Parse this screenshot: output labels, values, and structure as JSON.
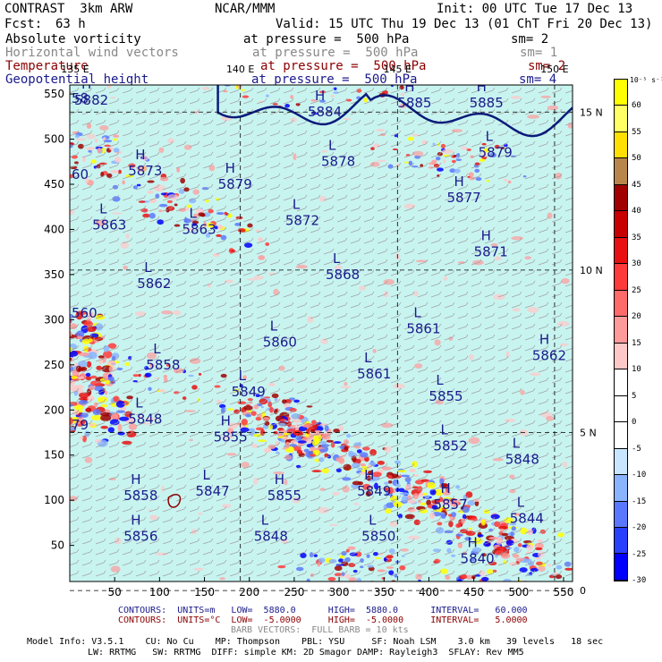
{
  "header": {
    "model": "CONTRAST  3km ARW",
    "org": "NCAR/MMM",
    "init": "Init: 00 UTC Tue 17 Dec 13",
    "fcst_label": "Fcst:",
    "fcst_value": "63 h",
    "valid": "Valid: 15 UTC Thu 19 Dec 13 (01 ChT Fri 20 Dec 13)",
    "fields": [
      {
        "name": "Absolute vorticity",
        "pressure": "at pressure =  500 hPa",
        "sm": "sm= 2"
      },
      {
        "name": "Horizontal wind vectors",
        "pressure": "at pressure =  500 hPa",
        "sm": "sm= 1"
      },
      {
        "name": "Temperature",
        "pressure": "at pressure =  500 hPa",
        "sm": "sm= 2"
      },
      {
        "name": "Geopotential height",
        "pressure": "at pressure =  500 hPa",
        "sm": "sm= 4"
      }
    ]
  },
  "footer": {
    "contours_blue": "CONTOURS:  UNITS=m   LOW=  5880.0      HIGH=  5880.0      INTERVAL=   60.000",
    "contours_red": "CONTOURS:  UNITS=°C  LOW=  -5.0000     HIGH=  -5.0000     INTERVAL=   5.0000",
    "barb": "BARB VECTORS:  FULL BARB = 10 kts",
    "model_info_1": "Model Info: V3.5.1    CU: No Cu    MP: Thompson    PBL: YSU     SF: Noah LSM    3.0 km   39 levels   18 sec",
    "model_info_2": "LW: RRTMG   SW: RRTMG  DIFF: simple KM: 2D Smagor DAMP: Rayleigh3  SFLAY: Rev MM5"
  },
  "colorbar": {
    "unit": "10⁻⁵ s⁻¹",
    "labels": [
      "60",
      "55",
      "50",
      "45",
      "40",
      "35",
      "30",
      "25",
      "20",
      "15",
      "10",
      "5",
      "0",
      "-5",
      "-10",
      "-15",
      "-20",
      "-25",
      "-30"
    ],
    "colors": [
      "#ffff00",
      "#ffff66",
      "#ffe000",
      "#b8864b",
      "#a00000",
      "#c80000",
      "#e81010",
      "#ff3a3a",
      "#ff6a6a",
      "#ff9a9a",
      "#ffc8c8",
      "#ffffff",
      "#ffffff",
      "#ffffff",
      "#c8e6ff",
      "#8ab4ff",
      "#5a78ff",
      "#2a40ff",
      "#0000ff"
    ]
  },
  "chart_data": {
    "type": "heatmap",
    "title": "Absolute vorticity / wind / temperature / geopotential height at 500 hPa",
    "x_ticks": [
      "50",
      "100",
      "150",
      "200",
      "250",
      "300",
      "350",
      "400",
      "450",
      "500",
      "550"
    ],
    "y_ticks": [
      "50",
      "100",
      "150",
      "200",
      "250",
      "300",
      "350",
      "400",
      "450",
      "500",
      "550"
    ],
    "xlim": [
      0,
      560
    ],
    "ylim": [
      10,
      560
    ],
    "lon_labels": [
      "135 E",
      "140 E",
      "145 E",
      "150 E"
    ],
    "lon_values": [
      135,
      140,
      145,
      150
    ],
    "lat_labels": [
      "15 N",
      "10 N",
      "5 N",
      "0"
    ],
    "lat_values": [
      15,
      10,
      5,
      0
    ],
    "gridline_x": [
      0,
      190,
      365,
      540
    ],
    "gridline_y": [
      530,
      355,
      175,
      0
    ],
    "height_labels": [
      {
        "kind": "H",
        "value": "5882",
        "x": 5,
        "y": 548
      },
      {
        "kind": "H",
        "value": "5884",
        "x": 265,
        "y": 535
      },
      {
        "kind": "H",
        "value": "5885",
        "x": 365,
        "y": 545
      },
      {
        "kind": "H",
        "value": "5885",
        "x": 445,
        "y": 545
      },
      {
        "kind": "L",
        "value": "5879",
        "x": 455,
        "y": 490
      },
      {
        "kind": "L",
        "value": "5878",
        "x": 280,
        "y": 480
      },
      {
        "kind": "H",
        "value": "5873",
        "x": 65,
        "y": 470
      },
      {
        "kind": "H",
        "value": "5879",
        "x": 165,
        "y": 455
      },
      {
        "kind": "H",
        "value": "5877",
        "x": 420,
        "y": 440
      },
      {
        "kind": "L",
        "value": "5863",
        "x": 25,
        "y": 410
      },
      {
        "kind": "L",
        "value": "5863",
        "x": 125,
        "y": 405
      },
      {
        "kind": "L",
        "value": "5872",
        "x": 240,
        "y": 415
      },
      {
        "kind": "H",
        "value": "5871",
        "x": 450,
        "y": 380
      },
      {
        "kind": "L",
        "value": "5862",
        "x": 75,
        "y": 345
      },
      {
        "kind": "L",
        "value": "5868",
        "x": 285,
        "y": 355
      },
      {
        "kind": "L",
        "value": "5861",
        "x": 375,
        "y": 295
      },
      {
        "kind": "L",
        "value": "5860",
        "x": 215,
        "y": 280
      },
      {
        "kind": "H",
        "value": "5862",
        "x": 515,
        "y": 265
      },
      {
        "kind": "L",
        "value": "5858",
        "x": 85,
        "y": 255
      },
      {
        "kind": "L",
        "value": "5861",
        "x": 320,
        "y": 245
      },
      {
        "kind": "L",
        "value": "5849",
        "x": 180,
        "y": 225
      },
      {
        "kind": "L",
        "value": "5855",
        "x": 400,
        "y": 220
      },
      {
        "kind": "L",
        "value": "5848",
        "x": 65,
        "y": 195
      },
      {
        "kind": "H",
        "value": "5855",
        "x": 160,
        "y": 175
      },
      {
        "kind": "L",
        "value": "5852",
        "x": 405,
        "y": 165
      },
      {
        "kind": "L",
        "value": "5848",
        "x": 485,
        "y": 150
      },
      {
        "kind": "H",
        "value": "5858",
        "x": 60,
        "y": 110
      },
      {
        "kind": "L",
        "value": "5847",
        "x": 140,
        "y": 115
      },
      {
        "kind": "H",
        "value": "5855",
        "x": 220,
        "y": 110
      },
      {
        "kind": "H",
        "value": "5849",
        "x": 320,
        "y": 115
      },
      {
        "kind": "H",
        "value": "5857",
        "x": 405,
        "y": 100
      },
      {
        "kind": "L",
        "value": "5844",
        "x": 490,
        "y": 85
      },
      {
        "kind": "H",
        "value": "5856",
        "x": 60,
        "y": 65
      },
      {
        "kind": "L",
        "value": "5848",
        "x": 205,
        "y": 65
      },
      {
        "kind": "L",
        "value": "5850",
        "x": 325,
        "y": 65
      },
      {
        "kind": "H",
        "value": "5840",
        "x": 435,
        "y": 40
      }
    ],
    "edge_labels": [
      "79",
      "560",
      "60",
      "58"
    ]
  }
}
